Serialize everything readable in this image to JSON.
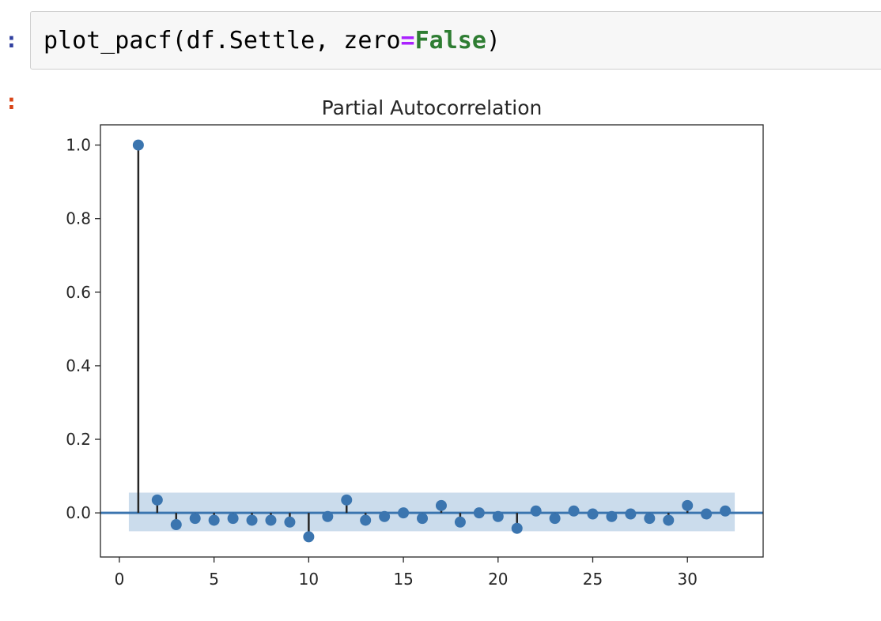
{
  "notebook": {
    "input_prompt": ":",
    "output_prompt": ":",
    "code": {
      "func": "plot_pacf",
      "open": "(df.Settle, zero",
      "op": "=",
      "kw": "False",
      "close": ")"
    }
  },
  "chart_data": {
    "type": "scatter",
    "style": "stem",
    "title": "Partial Autocorrelation",
    "xlabel": "",
    "ylabel": "",
    "x": [
      1,
      2,
      3,
      4,
      5,
      6,
      7,
      8,
      9,
      10,
      11,
      12,
      13,
      14,
      15,
      16,
      17,
      18,
      19,
      20,
      21,
      22,
      23,
      24,
      25,
      26,
      27,
      28,
      29,
      30,
      31,
      32
    ],
    "values": [
      1.0,
      0.035,
      -0.032,
      -0.015,
      -0.02,
      -0.015,
      -0.02,
      -0.02,
      -0.025,
      -0.065,
      -0.01,
      0.035,
      -0.02,
      -0.01,
      0.0,
      -0.015,
      0.02,
      -0.025,
      0.0,
      -0.01,
      -0.042,
      0.005,
      -0.015,
      0.005,
      -0.003,
      -0.01,
      -0.003,
      -0.015,
      -0.02,
      0.02,
      -0.003,
      0.005
    ],
    "confidence_band": [
      -0.05,
      0.055
    ],
    "xlim": [
      -1,
      34
    ],
    "ylim": [
      -0.12,
      1.055
    ],
    "xticks": [
      0,
      5,
      10,
      15,
      20,
      25,
      30
    ],
    "yticks": [
      0.0,
      0.2,
      0.4,
      0.6,
      0.8,
      1.0
    ],
    "ytick_labels": [
      "0.0",
      "0.2",
      "0.4",
      "0.6",
      "0.8",
      "1.0"
    ],
    "grid": false,
    "colors": {
      "marker": "#3b75af",
      "stem": "#262626",
      "band": "#a8c4e0",
      "zero_line": "#3b75af"
    }
  }
}
